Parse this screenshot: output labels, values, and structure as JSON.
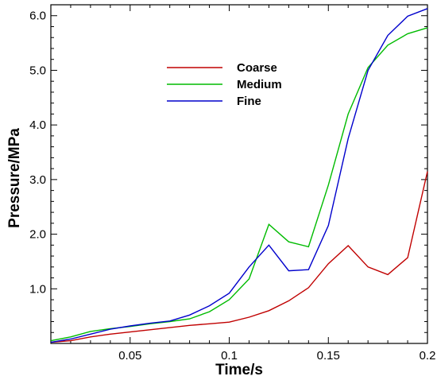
{
  "chart_data": {
    "type": "line",
    "title": "",
    "xlabel": "Time/s",
    "ylabel": "Pressure/MPa",
    "xlim": [
      0.01,
      0.2
    ],
    "ylim": [
      0,
      6.2
    ],
    "x_ticks": [
      0.05,
      0.1,
      0.15,
      0.2
    ],
    "x_tick_labels": [
      "0.05",
      "0.1",
      "0.15",
      "0.2"
    ],
    "y_ticks": [
      1.0,
      2.0,
      3.0,
      4.0,
      5.0,
      6.0
    ],
    "y_tick_labels": [
      "1.0",
      "2.0",
      "3.0",
      "4.0",
      "5.0",
      "6.0"
    ],
    "grid": false,
    "legend_position": "top-center",
    "x": [
      0.01,
      0.02,
      0.03,
      0.04,
      0.05,
      0.06,
      0.07,
      0.08,
      0.09,
      0.1,
      0.11,
      0.12,
      0.13,
      0.14,
      0.15,
      0.16,
      0.17,
      0.18,
      0.19,
      0.2
    ],
    "series": [
      {
        "name": "Coarse",
        "color": "#c00000",
        "values": [
          0.02,
          0.05,
          0.12,
          0.17,
          0.21,
          0.25,
          0.29,
          0.33,
          0.36,
          0.39,
          0.48,
          0.6,
          0.78,
          1.02,
          1.46,
          1.79,
          1.4,
          1.26,
          1.57,
          3.15
        ]
      },
      {
        "name": "Medium",
        "color": "#00bb00",
        "values": [
          0.05,
          0.12,
          0.22,
          0.27,
          0.31,
          0.36,
          0.4,
          0.45,
          0.58,
          0.8,
          1.18,
          2.18,
          1.86,
          1.77,
          2.9,
          4.2,
          5.05,
          5.46,
          5.67,
          5.78
        ]
      },
      {
        "name": "Fine",
        "color": "#0000cc",
        "values": [
          0.02,
          0.08,
          0.17,
          0.26,
          0.32,
          0.37,
          0.41,
          0.52,
          0.69,
          0.92,
          1.4,
          1.8,
          1.33,
          1.35,
          2.16,
          3.75,
          5.0,
          5.64,
          5.99,
          6.13
        ]
      }
    ]
  }
}
